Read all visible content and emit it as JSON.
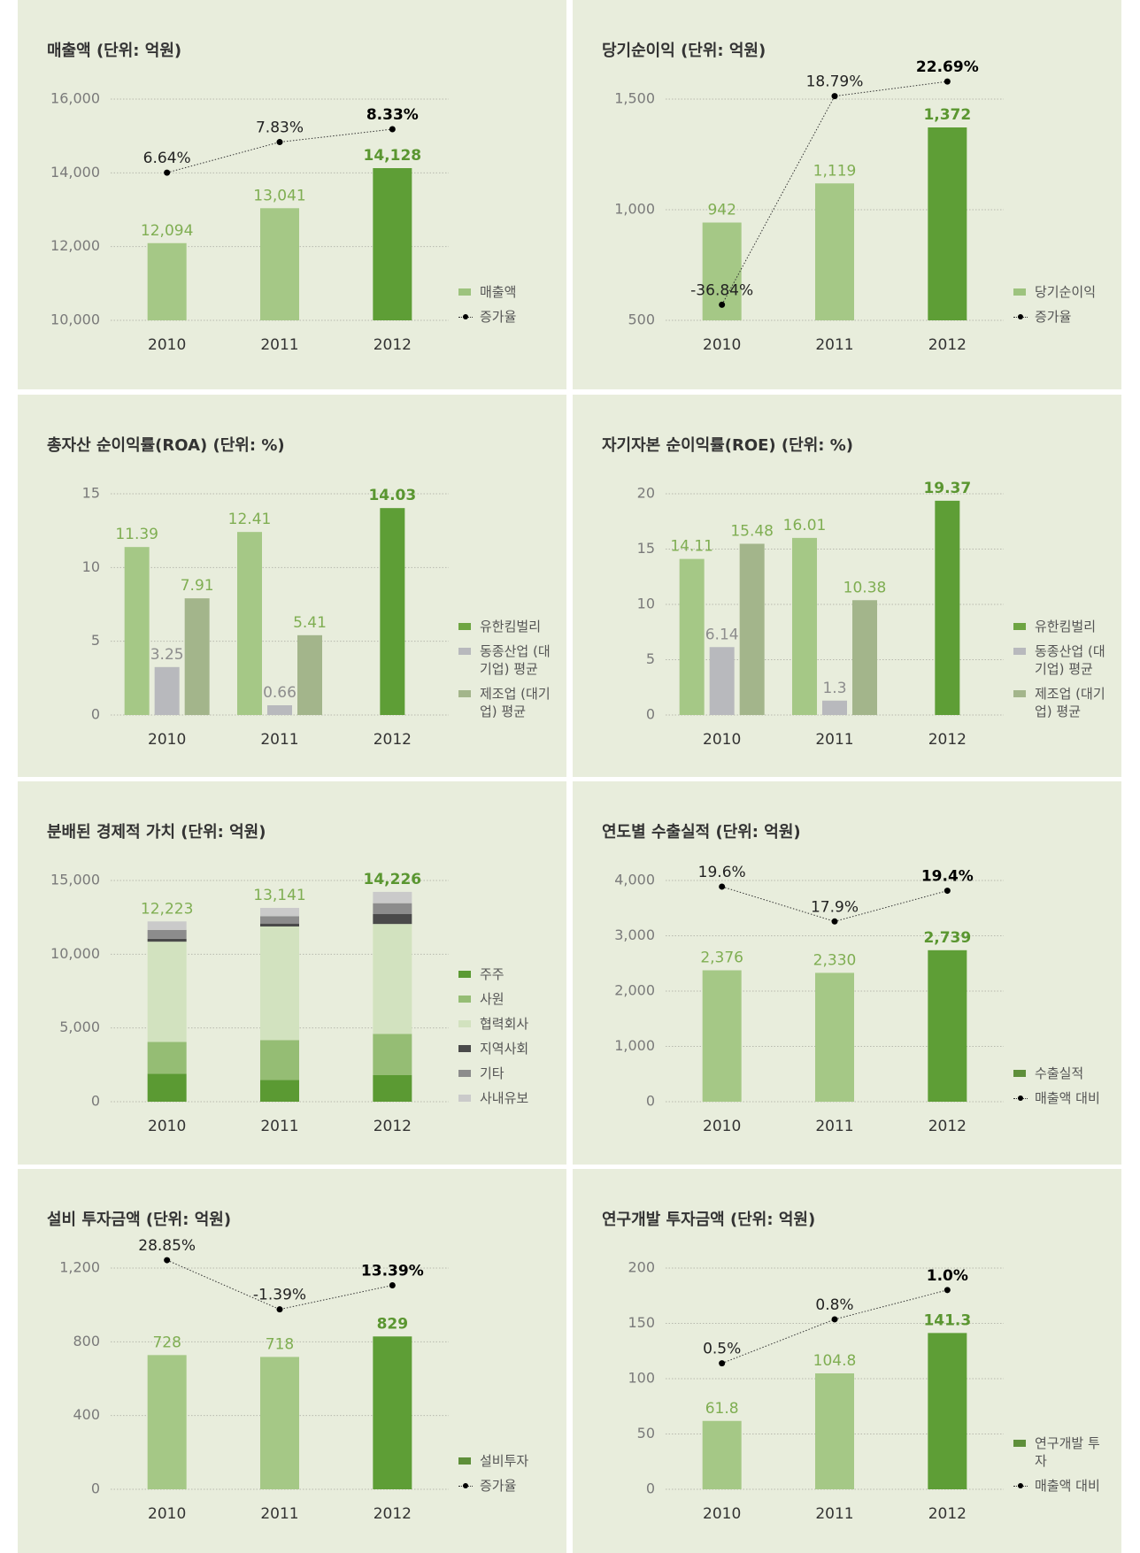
{
  "chart_data": [
    {
      "type": "bar_line",
      "title": "매출액 (단위: 억원)",
      "categories": [
        "2010",
        "2011",
        "2012"
      ],
      "series": [
        {
          "name": "매출액",
          "color": "#9dc37e",
          "colors": [
            "#a5c886",
            "#a5c886",
            "#5e9e36"
          ],
          "values": [
            12094,
            13041,
            14128
          ],
          "value_labels": [
            "12,094",
            "13,041",
            "14,128"
          ]
        },
        {
          "name": "증가율",
          "type": "line",
          "axis": "y2",
          "color": "#000000",
          "values": [
            6.64,
            7.83,
            8.33
          ],
          "value_labels": [
            "6.64%",
            "7.83%",
            "8.33%"
          ]
        }
      ],
      "ylim": [
        10000,
        16000
      ],
      "yticks": [
        {
          "value": 10000,
          "label": "10,000"
        },
        {
          "value": 12000,
          "label": "12,000"
        },
        {
          "value": 14000,
          "label": "14,000"
        },
        {
          "value": 16000,
          "label": "16,000"
        }
      ],
      "y2lim": [
        0.9,
        9.5
      ],
      "grid": true,
      "legend": "right"
    },
    {
      "type": "bar_line",
      "title": "당기순이익 (단위: 억원)",
      "categories": [
        "2010",
        "2011",
        "2012"
      ],
      "series": [
        {
          "name": "당기순이익",
          "color": "#9dc37e",
          "colors": [
            "#a5c886",
            "#a5c886",
            "#5e9e36"
          ],
          "values": [
            942,
            1119,
            1372
          ],
          "value_labels": [
            "942",
            "1,119",
            "1,372"
          ]
        },
        {
          "name": "증가율",
          "type": "line",
          "axis": "y2",
          "color": "#000000",
          "values": [
            -36.84,
            18.79,
            22.69
          ],
          "value_labels": [
            "-36.84%",
            "18.79%",
            "22.69%"
          ]
        }
      ],
      "ylim": [
        500,
        1500
      ],
      "yticks": [
        500,
        {
          "value": 1000,
          "label": "1,000"
        },
        {
          "value": 1500,
          "label": "1,500"
        }
      ],
      "y2lim": [
        -41,
        18
      ],
      "grid": true,
      "legend": "right"
    },
    {
      "type": "grouped_bar",
      "title": "총자산 순이익률(ROA) (단위: %)",
      "categories": [
        "2010",
        "2011",
        "2012"
      ],
      "series": [
        {
          "name": "유한킴벌리",
          "color": "#6ea542",
          "colors": [
            "#a5c886",
            "#a5c886",
            "#5e9e36"
          ],
          "values": [
            11.39,
            12.41,
            14.03
          ]
        },
        {
          "name": "동종산업 (대기업) 평균",
          "color": "#b8b9bd",
          "values": [
            3.25,
            0.66,
            null
          ]
        },
        {
          "name": "제조업 (대기업) 평균",
          "color": "#a3b58b",
          "values": [
            7.91,
            5.41,
            null
          ]
        }
      ],
      "ylim": [
        0,
        15
      ],
      "yticks": [
        0,
        5,
        10,
        15
      ],
      "grid": true,
      "legend": "right"
    },
    {
      "type": "grouped_bar",
      "title": "자기자본 순이익률(ROE) (단위: %)",
      "categories": [
        "2010",
        "2011",
        "2012"
      ],
      "series": [
        {
          "name": "유한킴벌리",
          "color": "#6ea542",
          "colors": [
            "#a5c886",
            "#a5c886",
            "#5e9e36"
          ],
          "values": [
            14.11,
            16.01,
            19.37
          ]
        },
        {
          "name": "동종산업 (대기업) 평균",
          "color": "#b8b9bd",
          "values": [
            6.14,
            1.3,
            null
          ]
        },
        {
          "name": "제조업 (대기업) 평균",
          "color": "#a3b58b",
          "values": [
            15.48,
            10.38,
            null
          ]
        }
      ],
      "ylim": [
        0,
        20
      ],
      "yticks": [
        0,
        5,
        10,
        15,
        20
      ],
      "grid": true,
      "legend": "right"
    },
    {
      "type": "stacked_bar",
      "title": "분배된 경제적 가치 (단위: 억원)",
      "categories": [
        "2010",
        "2011",
        "2012"
      ],
      "series": [
        {
          "name": "주주",
          "color": "#5b9a33",
          "values": [
            1900,
            1480,
            1800
          ]
        },
        {
          "name": "사원",
          "color": "#95bd74",
          "values": [
            2150,
            2700,
            2800
          ]
        },
        {
          "name": "협력회사",
          "color": "#d2e2bf",
          "values": [
            6800,
            7700,
            7450
          ]
        },
        {
          "name": "지역사회",
          "color": "#4a4a4a",
          "values": [
            200,
            200,
            670
          ]
        },
        {
          "name": "기타",
          "color": "#8c8c8c",
          "values": [
            600,
            500,
            740
          ]
        },
        {
          "name": "사내유보",
          "color": "#cacaca",
          "values": [
            573,
            561,
            766
          ]
        }
      ],
      "totals": [
        12223,
        13141,
        14226
      ],
      "total_labels": [
        "12,223",
        "13,141",
        "14,226"
      ],
      "ylim": [
        0,
        15000
      ],
      "yticks": [
        0,
        {
          "value": 5000,
          "label": "5,000"
        },
        {
          "value": 10000,
          "label": "10,000"
        },
        {
          "value": 15000,
          "label": "15,000"
        }
      ],
      "grid": true,
      "legend": "right"
    },
    {
      "type": "bar_line",
      "title": "연도별 수출실적 (단위: 억원)",
      "categories": [
        "2010",
        "2011",
        "2012"
      ],
      "series": [
        {
          "name": "수출실적",
          "color": "#5e8f3a",
          "colors": [
            "#a5c886",
            "#a5c886",
            "#5e9e36"
          ],
          "values": [
            2376,
            2330,
            2739
          ],
          "value_labels": [
            "2,376",
            "2,330",
            "2,739"
          ]
        },
        {
          "name": "매출액 대비",
          "type": "line",
          "axis": "y2",
          "color": "#000000",
          "values": [
            19.6,
            17.9,
            19.4
          ],
          "value_labels": [
            "19.6%",
            "17.9%",
            "19.4%"
          ]
        }
      ],
      "ylim": [
        0,
        4000
      ],
      "yticks": [
        0,
        {
          "value": 1000,
          "label": "1,000"
        },
        {
          "value": 2000,
          "label": "2,000"
        },
        {
          "value": 3000,
          "label": "3,000"
        },
        {
          "value": 4000,
          "label": "4,000"
        }
      ],
      "y2lim": [
        9.1,
        19.9
      ],
      "grid": true,
      "legend": "right"
    },
    {
      "type": "bar_line",
      "title": "설비 투자금액 (단위: 억원)",
      "categories": [
        "2010",
        "2011",
        "2012"
      ],
      "series": [
        {
          "name": "설비투자",
          "color": "#5e8f3a",
          "colors": [
            "#a5c886",
            "#a5c886",
            "#5e9e36"
          ],
          "values": [
            728,
            718,
            829
          ]
        },
        {
          "name": "증가율",
          "type": "line",
          "axis": "y2",
          "color": "#000000",
          "values": [
            28.85,
            -1.39,
            13.39
          ],
          "value_labels": [
            "28.85%",
            "-1.39%",
            "13.39%"
          ]
        }
      ],
      "ylim": [
        0,
        1200
      ],
      "yticks": [
        0,
        400,
        800,
        {
          "value": 1200,
          "label": "1,200"
        }
      ],
      "y2lim": [
        -112,
        24
      ],
      "grid": true,
      "legend": "right"
    },
    {
      "type": "bar_line",
      "title": "연구개발 투자금액 (단위: 억원)",
      "categories": [
        "2010",
        "2011",
        "2012"
      ],
      "series": [
        {
          "name": "연구개발 투자",
          "color": "#5e8f3a",
          "colors": [
            "#a5c886",
            "#a5c886",
            "#5e9e36"
          ],
          "values": [
            61.8,
            104.8,
            141.3
          ]
        },
        {
          "name": "매출액 대비",
          "type": "line",
          "axis": "y2",
          "color": "#000000",
          "values": [
            0.5,
            0.8,
            1.0
          ],
          "value_labels": [
            "0.5%",
            "0.8%",
            "1.0%"
          ]
        }
      ],
      "ylim": [
        0,
        200
      ],
      "yticks": [
        0,
        50,
        100,
        150,
        200
      ],
      "y2lim": [
        -0.36,
        1.15
      ],
      "grid": true,
      "legend": "right"
    }
  ]
}
